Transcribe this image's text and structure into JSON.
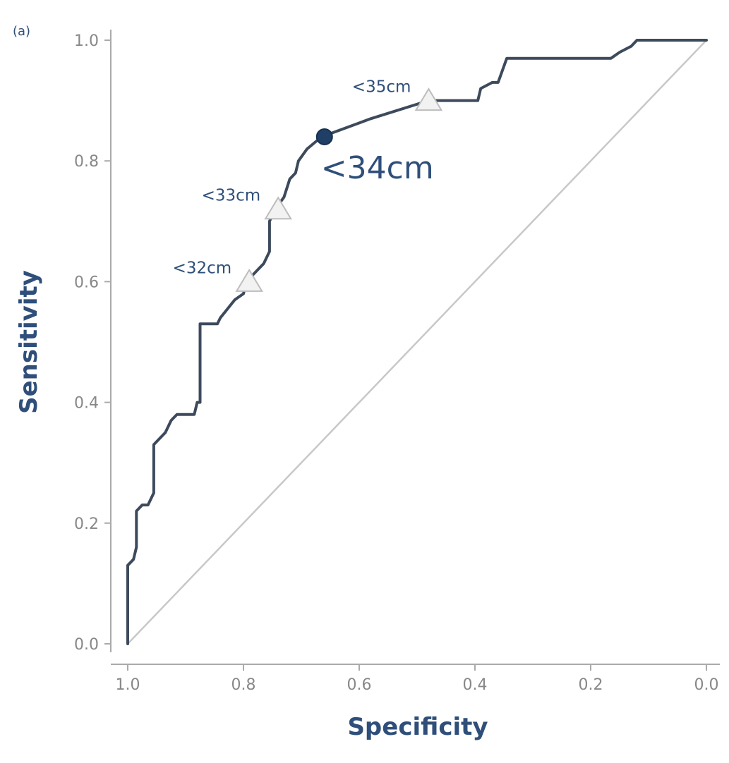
{
  "chart_data": {
    "type": "line",
    "panel_label": "(a)",
    "xlabel": "Specificity",
    "ylabel": "Sensitivity",
    "xlim": [
      1.0,
      0.0
    ],
    "ylim": [
      0.0,
      1.0
    ],
    "x_reversed": true,
    "xticks": [
      "1.0",
      "0.8",
      "0.6",
      "0.4",
      "0.2",
      "0.0"
    ],
    "yticks": [
      "0.0",
      "0.2",
      "0.4",
      "0.6",
      "0.8",
      "1.0"
    ],
    "grid": false,
    "series": [
      {
        "role": "roc-curve",
        "color": "#3d4a5c",
        "points": [
          [
            1.0,
            0.0
          ],
          [
            1.0,
            0.13
          ],
          [
            0.99,
            0.14
          ],
          [
            0.985,
            0.16
          ],
          [
            0.985,
            0.22
          ],
          [
            0.975,
            0.23
          ],
          [
            0.965,
            0.23
          ],
          [
            0.955,
            0.25
          ],
          [
            0.955,
            0.33
          ],
          [
            0.935,
            0.35
          ],
          [
            0.925,
            0.37
          ],
          [
            0.915,
            0.38
          ],
          [
            0.885,
            0.38
          ],
          [
            0.88,
            0.4
          ],
          [
            0.875,
            0.4
          ],
          [
            0.875,
            0.53
          ],
          [
            0.845,
            0.53
          ],
          [
            0.84,
            0.54
          ],
          [
            0.815,
            0.57
          ],
          [
            0.8,
            0.58
          ],
          [
            0.795,
            0.6
          ],
          [
            0.775,
            0.62
          ],
          [
            0.765,
            0.63
          ],
          [
            0.755,
            0.65
          ],
          [
            0.755,
            0.7
          ],
          [
            0.745,
            0.72
          ],
          [
            0.73,
            0.74
          ],
          [
            0.72,
            0.77
          ],
          [
            0.71,
            0.78
          ],
          [
            0.705,
            0.8
          ],
          [
            0.69,
            0.82
          ],
          [
            0.665,
            0.84
          ],
          [
            0.58,
            0.87
          ],
          [
            0.48,
            0.9
          ],
          [
            0.395,
            0.9
          ],
          [
            0.39,
            0.92
          ],
          [
            0.37,
            0.93
          ],
          [
            0.36,
            0.93
          ],
          [
            0.345,
            0.97
          ],
          [
            0.165,
            0.97
          ],
          [
            0.15,
            0.98
          ],
          [
            0.13,
            0.99
          ],
          [
            0.12,
            1.0
          ],
          [
            0.0,
            1.0
          ]
        ]
      },
      {
        "role": "reference-diagonal",
        "color": "#c8c8c8",
        "points": [
          [
            1.0,
            0.0
          ],
          [
            0.0,
            1.0
          ]
        ]
      }
    ],
    "annotations": [
      {
        "text": "<35cm",
        "specificity": 0.48,
        "sensitivity": 0.9,
        "marker": "triangle",
        "emphasis": false
      },
      {
        "text": "<34cm",
        "specificity": 0.66,
        "sensitivity": 0.84,
        "marker": "circle",
        "emphasis": true
      },
      {
        "text": "<33cm",
        "specificity": 0.74,
        "sensitivity": 0.72,
        "marker": "triangle",
        "emphasis": false
      },
      {
        "text": "<32cm",
        "specificity": 0.79,
        "sensitivity": 0.6,
        "marker": "triangle",
        "emphasis": false
      }
    ],
    "colors": {
      "axis": "#aaaaaa",
      "tick_text": "#888888",
      "title_text": "#2f4f7a",
      "highlight_marker": "#1f3f66",
      "triangle_fill": "#f2f2f2",
      "triangle_stroke": "#bdbdbd"
    }
  }
}
